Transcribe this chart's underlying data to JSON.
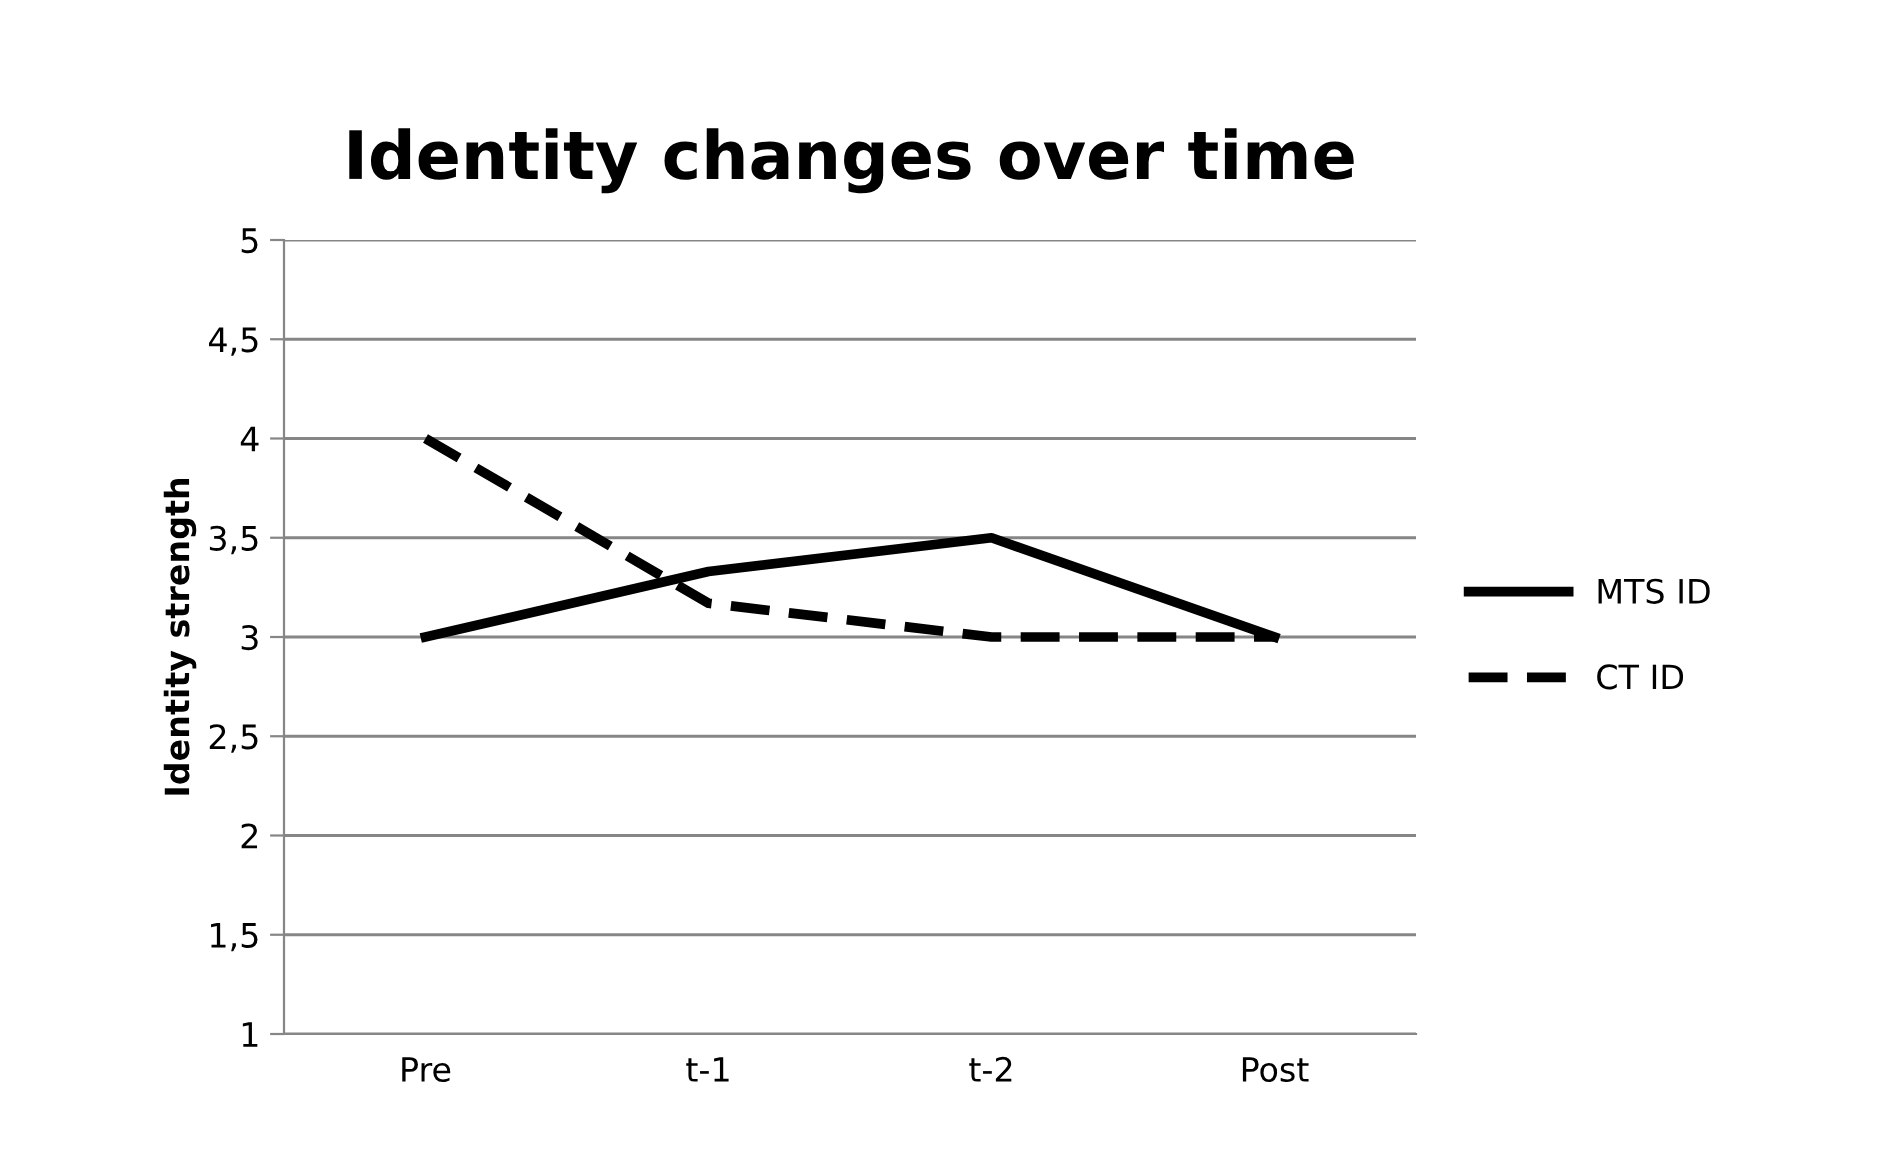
{
  "chart_data": {
    "type": "line",
    "title": "Identity changes over time",
    "ylabel": "Identity strength",
    "categories": [
      "Pre",
      "t-1",
      "t-2",
      "Post"
    ],
    "series": [
      {
        "name": "MTS ID",
        "color": "#000000",
        "values": [
          3,
          3.33,
          3.5,
          3
        ],
        "line_style": "solid"
      },
      {
        "name": "CT ID",
        "color": "#000000",
        "values": [
          4,
          3.17,
          3,
          3
        ],
        "line_style": "dashed"
      }
    ],
    "ylim": [
      1,
      5
    ],
    "yticks": [
      1,
      {
        "value": 1.5,
        "label": "1,5"
      },
      2,
      {
        "value": 2.5,
        "label": "2,5"
      },
      3,
      {
        "value": 3.5,
        "label": "3,5"
      },
      4,
      {
        "value": 4.5,
        "label": "4,5"
      },
      5
    ],
    "grid": "y",
    "legend": "right",
    "marker": "none"
  }
}
